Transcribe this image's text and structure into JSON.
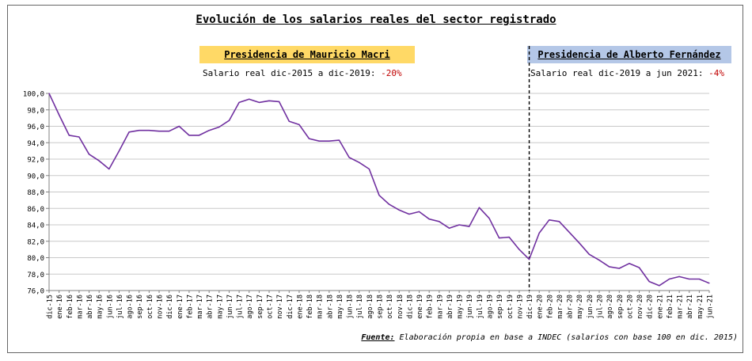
{
  "chart_data": {
    "type": "line",
    "title": "Evolución de los salarios reales del sector registrado",
    "xlabel": "",
    "ylabel": "",
    "ylim": [
      76,
      100
    ],
    "yticks": [
      "100,0",
      "98,0",
      "96,0",
      "94,0",
      "92,0",
      "90,0",
      "88,0",
      "86,0",
      "84,0",
      "82,0",
      "80,0",
      "78,0",
      "76,0"
    ],
    "grid": true,
    "line_color": "#7030a0",
    "categories": [
      "dic-15",
      "ene-16",
      "feb-16",
      "mar-16",
      "abr-16",
      "may-16",
      "jun-16",
      "jul-16",
      "ago-16",
      "sep-16",
      "oct-16",
      "nov-16",
      "dic-16",
      "ene-17",
      "feb-17",
      "mar-17",
      "abr-17",
      "may-17",
      "jun-17",
      "jul-17",
      "ago-17",
      "sep-17",
      "oct-17",
      "nov-17",
      "dic-17",
      "ene-18",
      "feb-18",
      "mar-18",
      "abr-18",
      "may-18",
      "jun-18",
      "jul-18",
      "ago-18",
      "sep-18",
      "oct-18",
      "nov-18",
      "dic-18",
      "ene-19",
      "feb-19",
      "mar-19",
      "abr-19",
      "may-19",
      "jun-19",
      "jul-19",
      "ago-19",
      "sep-19",
      "oct-19",
      "nov-19",
      "dic-19",
      "ene-20",
      "feb-20",
      "mar-20",
      "abr-20",
      "may-20",
      "jun-20",
      "jul-20",
      "ago-20",
      "sep-20",
      "oct-20",
      "nov-20",
      "dic-20",
      "ene-21",
      "feb-21",
      "mar-21",
      "abr-21",
      "may-21",
      "jun-21"
    ],
    "values": [
      100.0,
      97.4,
      94.9,
      94.7,
      92.6,
      91.8,
      90.8,
      93.0,
      95.3,
      95.5,
      95.5,
      95.4,
      95.4,
      96.0,
      94.9,
      94.9,
      95.5,
      95.9,
      96.7,
      98.9,
      99.3,
      98.9,
      99.1,
      99.0,
      96.6,
      96.2,
      94.5,
      94.2,
      94.2,
      94.3,
      92.2,
      91.6,
      90.8,
      87.6,
      86.5,
      85.8,
      85.3,
      85.6,
      84.7,
      84.4,
      83.6,
      84.0,
      83.8,
      86.1,
      84.8,
      82.4,
      82.5,
      81.0,
      79.8,
      83.0,
      84.6,
      84.4,
      83.1,
      81.8,
      80.4,
      79.7,
      78.9,
      78.7,
      79.3,
      78.8,
      77.1,
      76.6,
      77.4,
      77.7,
      77.4,
      77.4,
      76.9
    ],
    "divider_at": "dic-19",
    "annotations": {
      "macri_title": "Presidencia de Mauricio Macri",
      "macri_text": "Salario real dic-2015 a dic-2019: ",
      "macri_pct": "-20%",
      "macri_color": "#ffd966",
      "fernandez_title": "Presidencia de Alberto Fernández",
      "fernandez_text": "Salario real dic-2019 a jun 2021: ",
      "fernandez_pct": "-4%",
      "fernandez_color": "#b4c7e7",
      "pct_color": "#c00000"
    },
    "source_label": "Fuente:",
    "source_text": " Elaboración propia en base a INDEC (salarios con base 100 en dic. 2015)"
  }
}
